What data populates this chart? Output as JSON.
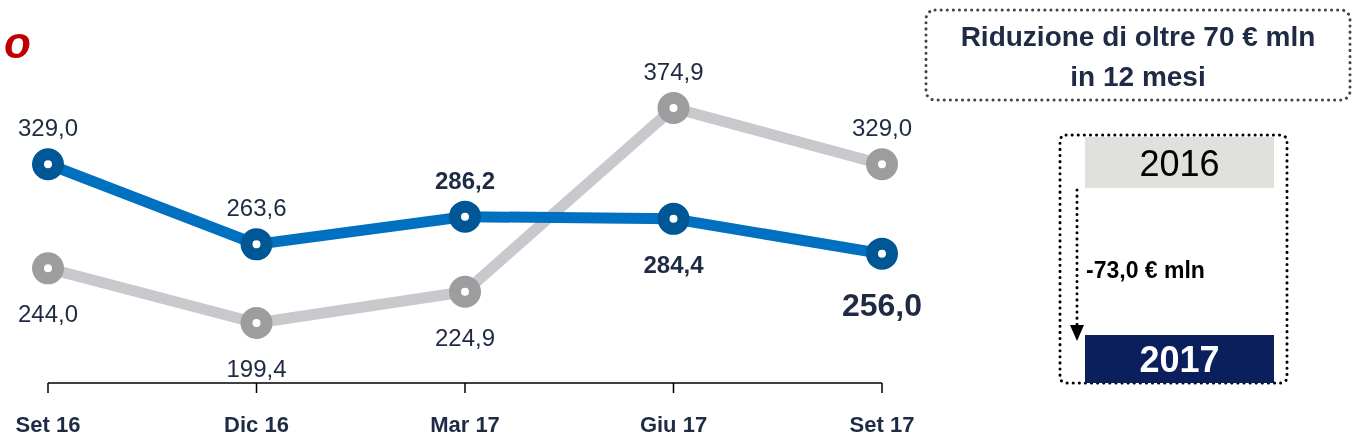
{
  "chart_data": {
    "type": "line",
    "title": "o",
    "categories": [
      "Set 16",
      "Dic 16",
      "Mar 17",
      "Giu 17",
      "Set 17"
    ],
    "series": [
      {
        "color": "#c8c9cc",
        "values": [
          244.0,
          199.4,
          224.9,
          374.9,
          329.0
        ],
        "value_labels": [
          "244,0",
          "199,4",
          "224,9",
          "374,9",
          "329,0"
        ]
      },
      {
        "color": "#0070c0",
        "values": [
          329.0,
          263.6,
          286.2,
          284.4,
          256.0
        ],
        "value_labels": [
          "329,0",
          "263,6",
          "286,2",
          "284,4",
          "256,0"
        ]
      }
    ],
    "tick_labels": "x",
    "marker": "circle",
    "line_style": "solid",
    "annotations": [
      "Riduzione di oltre 70 € mln in 12 mesi",
      "2016",
      "-73,0 € mln",
      "2017"
    ]
  }
}
